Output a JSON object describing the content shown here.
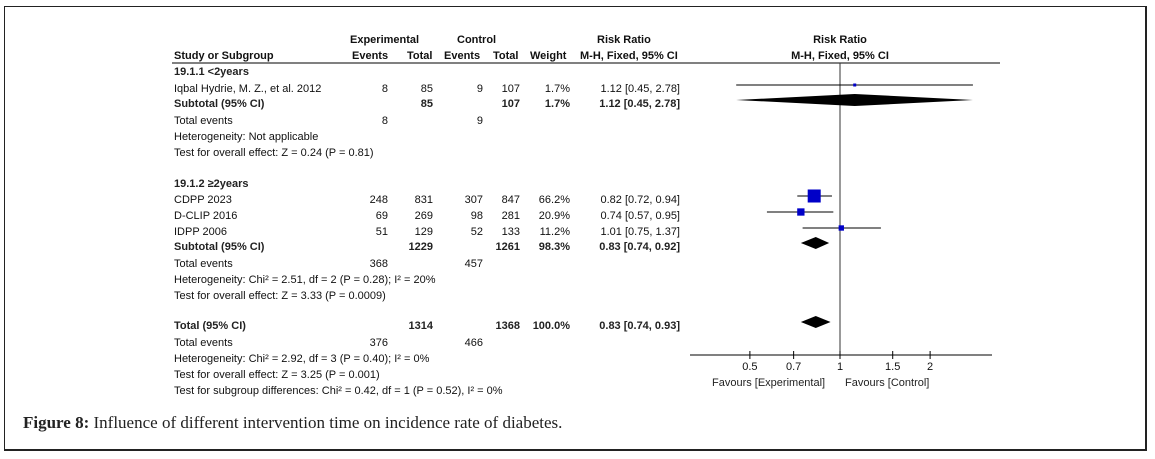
{
  "header": {
    "study_col": "Study or Subgroup",
    "experimental_group": "Experimental",
    "control_group": "Control",
    "events": "Events",
    "total": "Total",
    "weight": "Weight",
    "rr_title": "Risk Ratio",
    "rr_method": "M-H, Fixed, 95% CI",
    "plot_title": "Risk Ratio",
    "plot_method": "M-H, Fixed, 95% CI"
  },
  "subgroups": [
    {
      "title": "19.1.1 <2years",
      "studies": [
        {
          "name": "Iqbal Hydrie, M. Z., et al. 2012",
          "exp_events": "8",
          "exp_total": "85",
          "ctl_events": "9",
          "ctl_total": "107",
          "weight": "1.7%",
          "rr_text": "1.12 [0.45, 2.78]"
        }
      ],
      "subtotal": {
        "label": "Subtotal (95% CI)",
        "exp_total": "85",
        "ctl_total": "107",
        "weight": "1.7%",
        "rr_text": "1.12 [0.45, 2.78]"
      },
      "total_events": {
        "label": "Total events",
        "exp": "8",
        "ctl": "9"
      },
      "heterogeneity": "Heterogeneity: Not applicable",
      "overall_effect": "Test for overall effect: Z = 0.24 (P = 0.81)"
    },
    {
      "title": "19.1.2 ≥2years",
      "studies": [
        {
          "name": "CDPP 2023",
          "exp_events": "248",
          "exp_total": "831",
          "ctl_events": "307",
          "ctl_total": "847",
          "weight": "66.2%",
          "rr_text": "0.82 [0.72, 0.94]"
        },
        {
          "name": "D-CLIP 2016",
          "exp_events": "69",
          "exp_total": "269",
          "ctl_events": "98",
          "ctl_total": "281",
          "weight": "20.9%",
          "rr_text": "0.74 [0.57, 0.95]"
        },
        {
          "name": "IDPP 2006",
          "exp_events": "51",
          "exp_total": "129",
          "ctl_events": "52",
          "ctl_total": "133",
          "weight": "11.2%",
          "rr_text": "1.01 [0.75, 1.37]"
        }
      ],
      "subtotal": {
        "label": "Subtotal (95% CI)",
        "exp_total": "1229",
        "ctl_total": "1261",
        "weight": "98.3%",
        "rr_text": "0.83 [0.74, 0.92]"
      },
      "total_events": {
        "label": "Total events",
        "exp": "368",
        "ctl": "457"
      },
      "heterogeneity": "Heterogeneity: Chi² = 2.51, df = 2 (P = 0.28); I² = 20%",
      "overall_effect": "Test for overall effect: Z = 3.33 (P = 0.0009)"
    }
  ],
  "overall": {
    "label": "Total (95% CI)",
    "exp_total": "1314",
    "ctl_total": "1368",
    "weight": "100.0%",
    "rr_text": "0.83 [0.74, 0.93]",
    "total_events": {
      "label": "Total events",
      "exp": "376",
      "ctl": "466"
    },
    "heterogeneity": "Heterogeneity: Chi² = 2.92, df = 3 (P = 0.40); I² = 0%",
    "overall_effect": "Test for overall effect: Z = 3.25 (P = 0.001)",
    "subgroup_diff": "Test for subgroup differences: Chi² = 0.42, df = 1 (P = 0.52), I² = 0%"
  },
  "axis": {
    "favours_left": "Favours [Experimental]",
    "favours_right": "Favours [Control]"
  },
  "caption": {
    "label": "Figure 8:",
    "text": " Influence of different intervention time on incidence rate of diabetes."
  },
  "chart_data": {
    "type": "forest",
    "title": "Risk Ratio",
    "subtitle": "M-H, Fixed, 95% CI",
    "scale": "log",
    "xlim": [
      0.4,
      3.2
    ],
    "xticks": [
      0.5,
      0.7,
      1,
      1.5,
      2
    ],
    "xtick_labels": [
      "0.5",
      "0.7",
      "1",
      "1.5",
      "2"
    ],
    "null_line": 1,
    "xlabel_left": "Favours [Experimental]",
    "xlabel_right": "Favours [Control]",
    "colors": {
      "study_box": "#0000c8",
      "diamond": "#000000",
      "line": "#000000"
    },
    "points": [
      {
        "kind": "study",
        "label": "Iqbal Hydrie, M. Z., et al. 2012",
        "rr": 1.12,
        "lo": 0.45,
        "hi": 2.78,
        "weight": 1.7
      },
      {
        "kind": "diamond",
        "label": "Subtotal 19.1.1",
        "rr": 1.12,
        "lo": 0.45,
        "hi": 2.78
      },
      {
        "kind": "study",
        "label": "CDPP 2023",
        "rr": 0.82,
        "lo": 0.72,
        "hi": 0.94,
        "weight": 66.2
      },
      {
        "kind": "study",
        "label": "D-CLIP 2016",
        "rr": 0.74,
        "lo": 0.57,
        "hi": 0.95,
        "weight": 20.9
      },
      {
        "kind": "study",
        "label": "IDPP 2006",
        "rr": 1.01,
        "lo": 0.75,
        "hi": 1.37,
        "weight": 11.2
      },
      {
        "kind": "diamond",
        "label": "Subtotal 19.1.2",
        "rr": 0.83,
        "lo": 0.74,
        "hi": 0.92
      },
      {
        "kind": "diamond",
        "label": "Total",
        "rr": 0.83,
        "lo": 0.74,
        "hi": 0.93
      }
    ]
  }
}
